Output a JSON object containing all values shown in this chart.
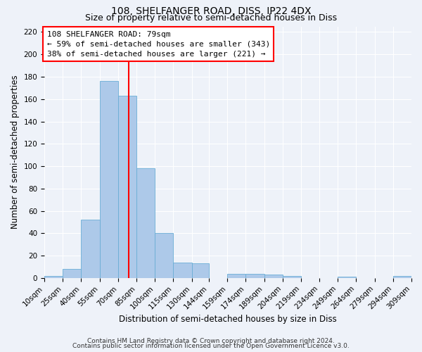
{
  "title": "108, SHELFANGER ROAD, DISS, IP22 4DX",
  "subtitle": "Size of property relative to semi-detached houses in Diss",
  "xlabel": "Distribution of semi-detached houses by size in Diss",
  "ylabel": "Number of semi-detached properties",
  "bin_edges": [
    10,
    25,
    40,
    55,
    70,
    85,
    100,
    115,
    130,
    144,
    159,
    174,
    189,
    204,
    219,
    234,
    249,
    264,
    279,
    294,
    309
  ],
  "bin_labels": [
    "10sqm",
    "25sqm",
    "40sqm",
    "55sqm",
    "70sqm",
    "85sqm",
    "100sqm",
    "115sqm",
    "130sqm",
    "144sqm",
    "159sqm",
    "174sqm",
    "189sqm",
    "204sqm",
    "219sqm",
    "234sqm",
    "249sqm",
    "264sqm",
    "279sqm",
    "294sqm",
    "309sqm"
  ],
  "bar_heights": [
    2,
    8,
    52,
    176,
    163,
    98,
    40,
    14,
    13,
    0,
    4,
    4,
    3,
    2,
    0,
    0,
    1,
    0,
    0,
    2
  ],
  "bar_color": "#adc9e9",
  "bar_edgecolor": "#6aaed6",
  "property_line_x": 79,
  "annotation_text_line1": "108 SHELFANGER ROAD: 79sqm",
  "annotation_text_line2": "← 59% of semi-detached houses are smaller (343)",
  "annotation_text_line3": "38% of semi-detached houses are larger (221) →",
  "box_linecolor": "red",
  "vline_color": "red",
  "ylim": [
    0,
    225
  ],
  "yticks": [
    0,
    20,
    40,
    60,
    80,
    100,
    120,
    140,
    160,
    180,
    200,
    220
  ],
  "footer_line1": "Contains HM Land Registry data © Crown copyright and database right 2024.",
  "footer_line2": "Contains public sector information licensed under the Open Government Licence v3.0.",
  "background_color": "#eef2f9",
  "plot_background": "#eef2f9",
  "grid_color": "#ffffff",
  "title_fontsize": 10,
  "subtitle_fontsize": 9,
  "axis_label_fontsize": 8.5,
  "tick_fontsize": 7.5,
  "annotation_fontsize": 8,
  "footer_fontsize": 6.5
}
